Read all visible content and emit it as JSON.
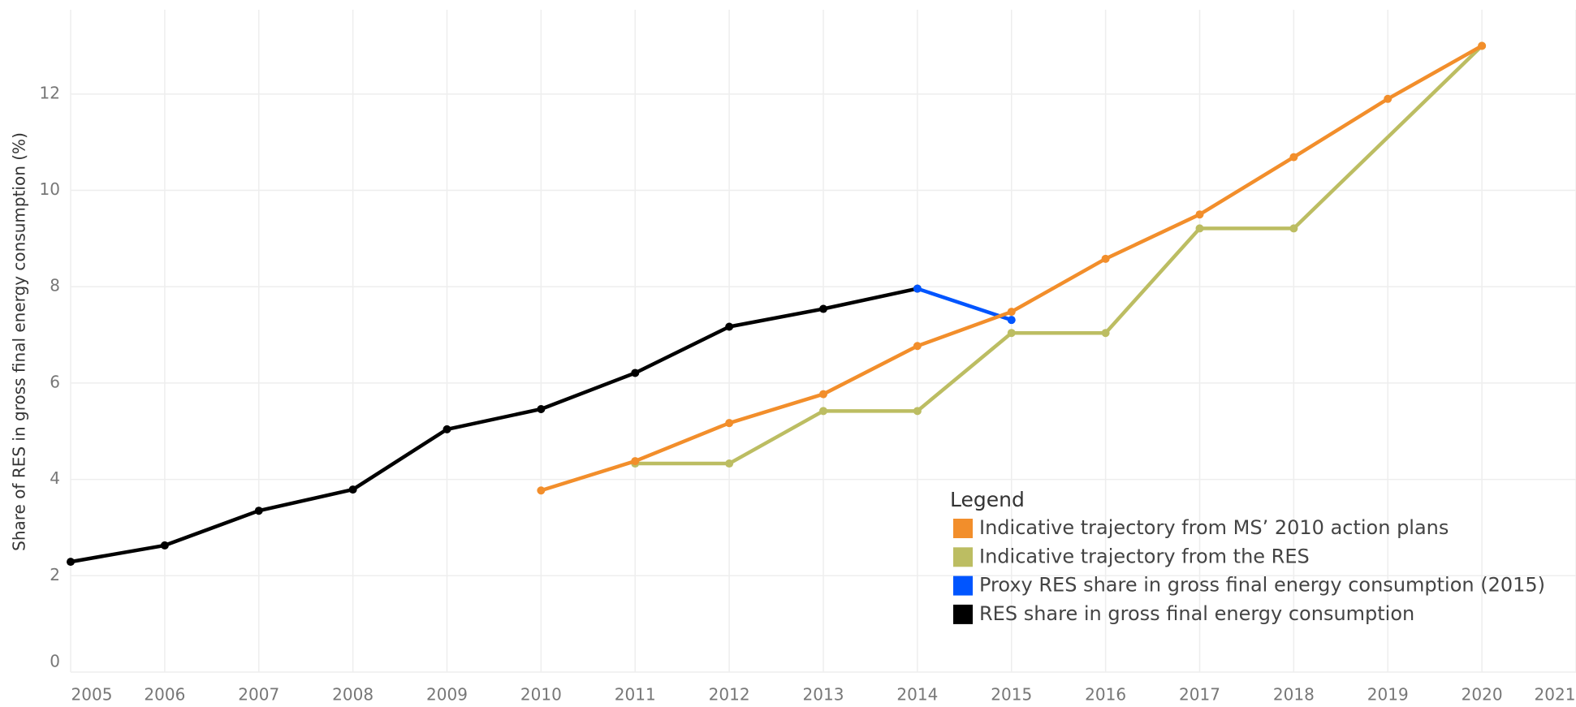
{
  "chart_data": {
    "type": "line",
    "y_label": "Share of RES in gross final energy consumption (%)",
    "legend_title": "Legend",
    "xlim": [
      2005,
      2021
    ],
    "xticks": [
      2005,
      2006,
      2007,
      2008,
      2009,
      2010,
      2011,
      2012,
      2013,
      2014,
      2015,
      2016,
      2017,
      2018,
      2019,
      2020,
      2021
    ],
    "ylim": [
      0,
      13.75
    ],
    "yticks": [
      0,
      2,
      4,
      6,
      8,
      10,
      12
    ],
    "grid": true,
    "series": [
      {
        "name": "Indicative trajectory from MS’ 2010 action plans",
        "color": "#f28e2b",
        "x": [
          2010,
          2011,
          2012,
          2013,
          2014,
          2015,
          2016,
          2017,
          2018,
          2019,
          2020
        ],
        "values": [
          3.77,
          4.38,
          5.17,
          5.77,
          6.77,
          7.48,
          8.58,
          9.5,
          10.69,
          11.9,
          13.0
        ]
      },
      {
        "name": "Indicative trajectory from the RES",
        "color": "#bcbd62",
        "x": [
          2011,
          2012,
          2013,
          2014,
          2015,
          2016,
          2017,
          2018,
          2020
        ],
        "values": [
          4.33,
          4.33,
          5.42,
          5.42,
          7.04,
          7.04,
          9.21,
          9.21,
          13.0
        ]
      },
      {
        "name": "Proxy RES share in gross final energy consumption (2015)",
        "color": "#0055ff",
        "x": [
          2014,
          2015
        ],
        "values": [
          7.96,
          7.31
        ]
      },
      {
        "name": "RES share in gross final energy consumption",
        "color": "#000000",
        "x": [
          2005,
          2006,
          2007,
          2008,
          2009,
          2010,
          2011,
          2012,
          2013,
          2014
        ],
        "values": [
          2.29,
          2.63,
          3.35,
          3.79,
          5.04,
          5.46,
          6.21,
          7.17,
          7.54,
          7.96
        ]
      }
    ]
  }
}
